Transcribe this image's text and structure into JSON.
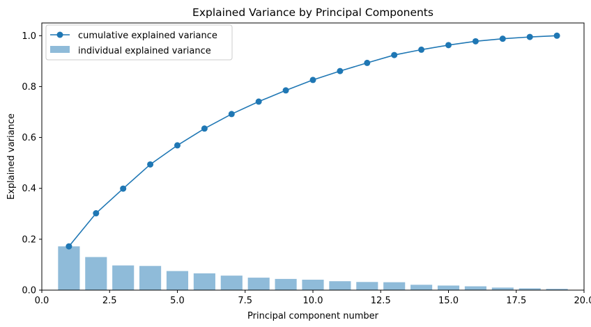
{
  "chart_data": {
    "type": "bar",
    "title": "Explained Variance by Principal Components",
    "xlabel": "Principal component number",
    "ylabel": "Explained variance",
    "xlim": [
      -0.0,
      20.0
    ],
    "ylim": [
      0.0,
      1.05
    ],
    "xticks": [
      0.0,
      2.5,
      5.0,
      7.5,
      10.0,
      12.5,
      15.0,
      17.5,
      20.0
    ],
    "xtick_labels": [
      "0.0",
      "2.5",
      "5.0",
      "7.5",
      "10.0",
      "12.5",
      "15.0",
      "17.5",
      "20.0"
    ],
    "yticks": [
      0.0,
      0.2,
      0.4,
      0.6,
      0.8,
      1.0
    ],
    "ytick_labels": [
      "0.0",
      "0.2",
      "0.4",
      "0.6",
      "0.8",
      "1.0"
    ],
    "grid": false,
    "legend_placement": "upper-left",
    "x": [
      1,
      2,
      3,
      4,
      5,
      6,
      7,
      8,
      9,
      10,
      11,
      12,
      13,
      14,
      15,
      16,
      17,
      18,
      19
    ],
    "series": [
      {
        "name": "cumulative explained variance",
        "kind": "line",
        "marker": "circle",
        "color": "#1f77b4",
        "values": [
          0.172,
          0.302,
          0.399,
          0.494,
          0.569,
          0.635,
          0.692,
          0.741,
          0.785,
          0.826,
          0.861,
          0.893,
          0.924,
          0.945,
          0.963,
          0.978,
          0.988,
          0.995,
          1.0
        ]
      },
      {
        "name": "individual explained variance",
        "kind": "bar",
        "color": "#1f77b4",
        "alpha": 0.5,
        "values": [
          0.172,
          0.13,
          0.097,
          0.095,
          0.075,
          0.066,
          0.057,
          0.049,
          0.044,
          0.041,
          0.035,
          0.032,
          0.031,
          0.021,
          0.018,
          0.015,
          0.01,
          0.007,
          0.005
        ]
      }
    ]
  }
}
